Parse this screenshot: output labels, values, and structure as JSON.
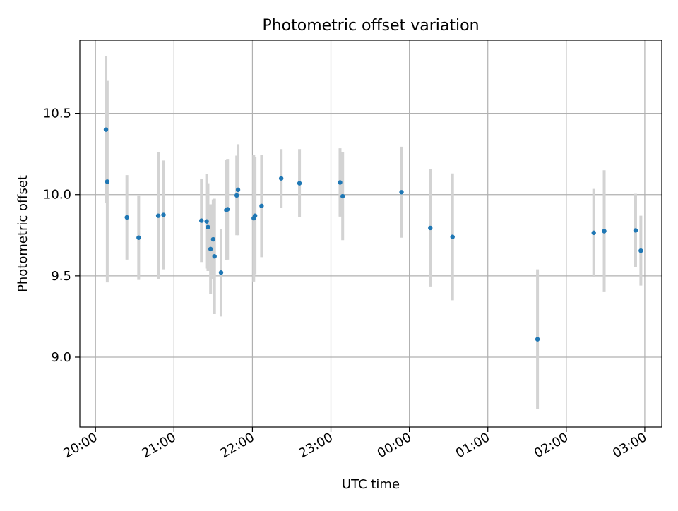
{
  "chart_data": {
    "type": "scatter",
    "title": "Photometric offset variation",
    "xlabel": "UTC time",
    "ylabel": "Photometric offset",
    "xlim": [
      "19:48",
      "03:13"
    ],
    "ylim": [
      8.57,
      10.95
    ],
    "x_ticks": [
      "20:00",
      "21:00",
      "22:00",
      "23:00",
      "00:00",
      "01:00",
      "02:00",
      "03:00"
    ],
    "y_ticks": [
      "9.0",
      "9.5",
      "10.0",
      "10.5"
    ],
    "grid": true,
    "point_color": "#1f77b4",
    "errorbar_color": "#d3d3d3",
    "points": [
      {
        "x": "20:08",
        "y": 10.4,
        "err": 0.45
      },
      {
        "x": "20:09",
        "y": 10.08,
        "err": 0.62
      },
      {
        "x": "20:24",
        "y": 9.86,
        "err": 0.26
      },
      {
        "x": "20:33",
        "y": 9.735,
        "err": 0.26
      },
      {
        "x": "20:48",
        "y": 9.87,
        "err": 0.39
      },
      {
        "x": "20:52",
        "y": 9.875,
        "err": 0.335
      },
      {
        "x": "21:21",
        "y": 9.84,
        "err": 0.255
      },
      {
        "x": "21:25",
        "y": 9.835,
        "err": 0.29
      },
      {
        "x": "21:26",
        "y": 9.8,
        "err": 0.27
      },
      {
        "x": "21:28",
        "y": 9.665,
        "err": 0.275
      },
      {
        "x": "21:30",
        "y": 9.725,
        "err": 0.245
      },
      {
        "x": "21:31",
        "y": 9.62,
        "err": 0.355
      },
      {
        "x": "21:36",
        "y": 9.52,
        "err": 0.27
      },
      {
        "x": "21:40",
        "y": 9.905,
        "err": 0.31
      },
      {
        "x": "21:41",
        "y": 9.91,
        "err": 0.31
      },
      {
        "x": "21:48",
        "y": 9.995,
        "err": 0.245
      },
      {
        "x": "21:49",
        "y": 10.03,
        "err": 0.28
      },
      {
        "x": "22:01",
        "y": 9.855,
        "err": 0.39
      },
      {
        "x": "22:02",
        "y": 9.87,
        "err": 0.36
      },
      {
        "x": "22:07",
        "y": 9.93,
        "err": 0.315
      },
      {
        "x": "22:22",
        "y": 10.1,
        "err": 0.18
      },
      {
        "x": "22:36",
        "y": 10.07,
        "err": 0.21
      },
      {
        "x": "23:07",
        "y": 10.075,
        "err": 0.21
      },
      {
        "x": "23:09",
        "y": 9.99,
        "err": 0.27
      },
      {
        "x": "23:54",
        "y": 10.015,
        "err": 0.28
      },
      {
        "x": "00:16",
        "y": 9.795,
        "err": 0.36
      },
      {
        "x": "00:33",
        "y": 9.74,
        "err": 0.39
      },
      {
        "x": "01:38",
        "y": 9.11,
        "err": 0.43
      },
      {
        "x": "02:21",
        "y": 9.765,
        "err": 0.27
      },
      {
        "x": "02:29",
        "y": 9.775,
        "err": 0.375
      },
      {
        "x": "02:53",
        "y": 9.78,
        "err": 0.225
      },
      {
        "x": "02:57",
        "y": 9.655,
        "err": 0.215
      }
    ]
  }
}
